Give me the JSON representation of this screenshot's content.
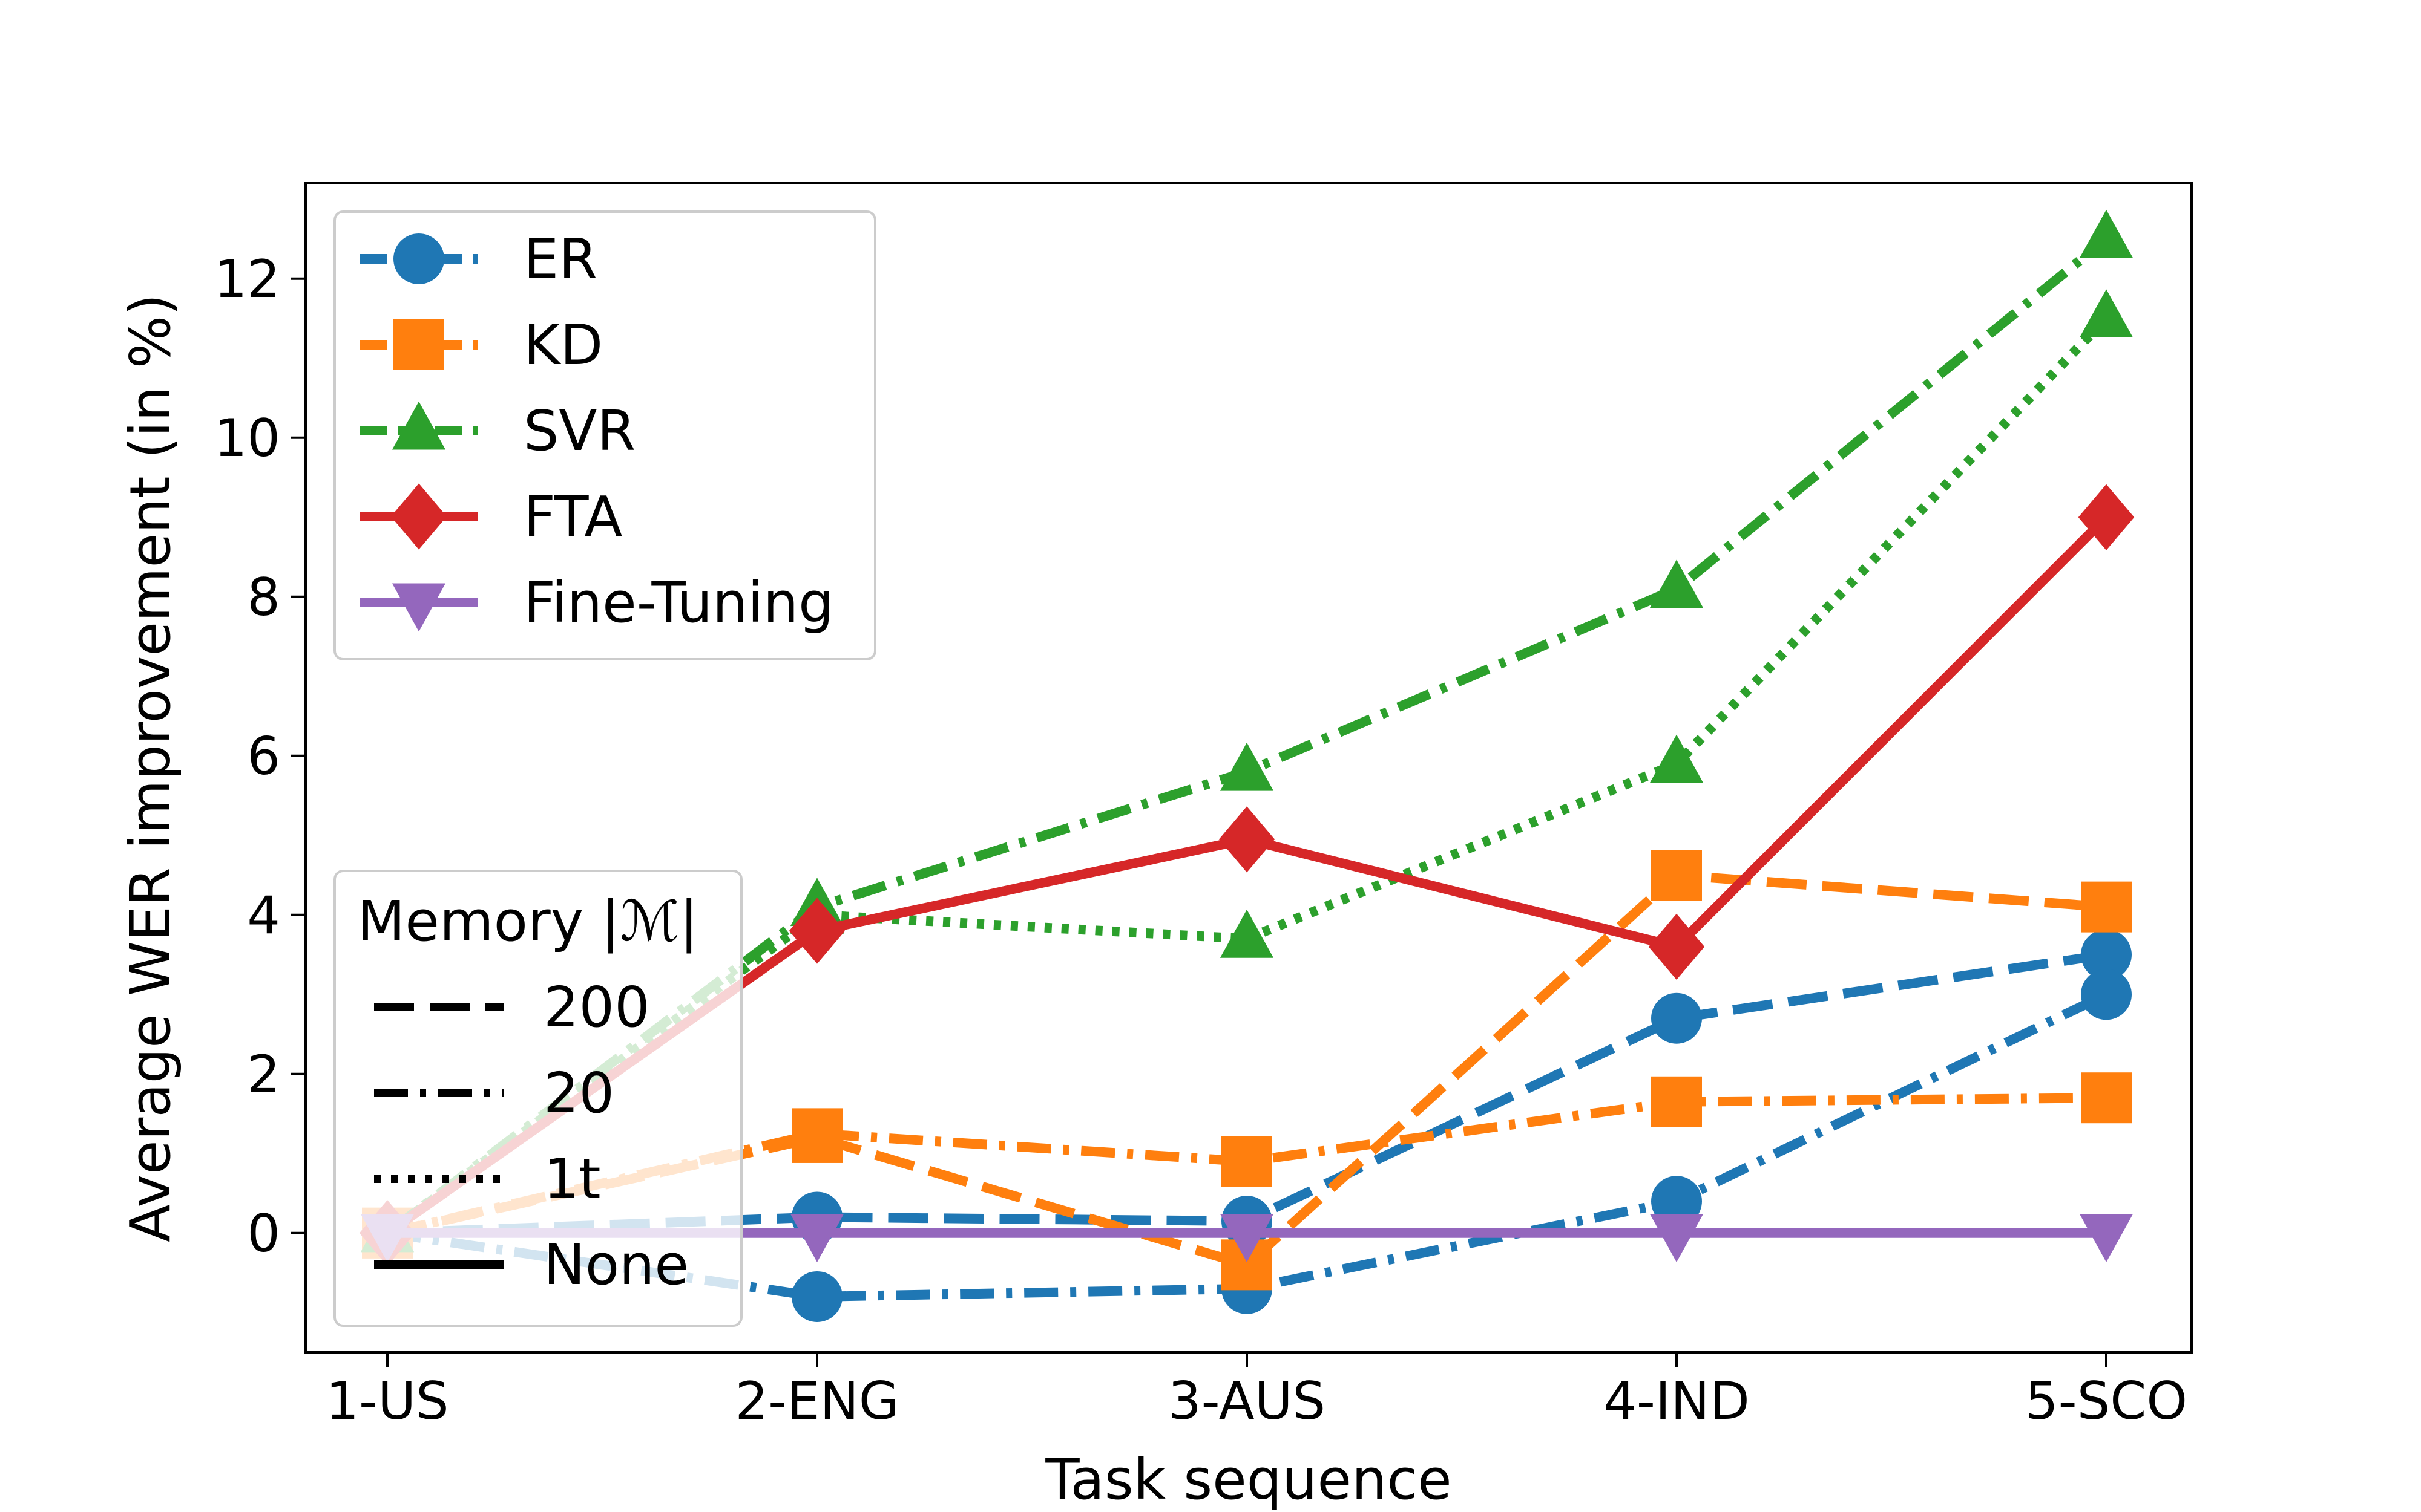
{
  "chart_data": {
    "type": "line",
    "title": "",
    "xlabel": "Task sequence",
    "ylabel": "Average WER improvement (in %)",
    "categories": [
      "1-US",
      "2-ENG",
      "3-AUS",
      "4-IND",
      "5-SCO"
    ],
    "ylim": [
      -1.5,
      13.2
    ],
    "yticks": [
      0,
      2,
      4,
      6,
      8,
      10,
      12
    ],
    "grid": false,
    "methods": [
      {
        "name": "ER",
        "color": "#1f77b4",
        "marker": "circle"
      },
      {
        "name": "KD",
        "color": "#ff7f0e",
        "marker": "square"
      },
      {
        "name": "SVR",
        "color": "#2ca02c",
        "marker": "triangle-up"
      },
      {
        "name": "FTA",
        "color": "#d62728",
        "marker": "diamond"
      },
      {
        "name": "Fine-Tuning",
        "color": "#9467bd",
        "marker": "triangle-down"
      }
    ],
    "memory_legend": {
      "title": "Memory |ℳ|",
      "entries": [
        {
          "label": "200",
          "style": "dashed"
        },
        {
          "label": "20",
          "style": "dashdot"
        },
        {
          "label": "1t",
          "style": "dotted"
        },
        {
          "label": "None",
          "style": "solid"
        }
      ]
    },
    "series": [
      {
        "method": "ER",
        "memory": "200",
        "values": [
          0,
          0.2,
          0.15,
          2.7,
          3.5
        ]
      },
      {
        "method": "ER",
        "memory": "20",
        "values": [
          0,
          -0.8,
          -0.7,
          0.4,
          3.0
        ]
      },
      {
        "method": "KD",
        "memory": "200",
        "values": [
          0,
          1.2,
          -0.4,
          4.5,
          4.1
        ]
      },
      {
        "method": "KD",
        "memory": "20",
        "values": [
          0,
          1.25,
          0.9,
          1.65,
          1.7
        ]
      },
      {
        "method": "SVR",
        "memory": "20",
        "values": [
          0,
          4.1,
          5.8,
          8.1,
          12.5
        ]
      },
      {
        "method": "SVR",
        "memory": "1t",
        "values": [
          0,
          4.0,
          3.7,
          5.9,
          11.5
        ]
      },
      {
        "method": "FTA",
        "memory": "None",
        "values": [
          0,
          3.8,
          4.95,
          3.6,
          9.0
        ]
      },
      {
        "method": "Fine-Tuning",
        "memory": "None",
        "values": [
          0,
          0,
          0,
          0,
          0
        ]
      }
    ]
  }
}
